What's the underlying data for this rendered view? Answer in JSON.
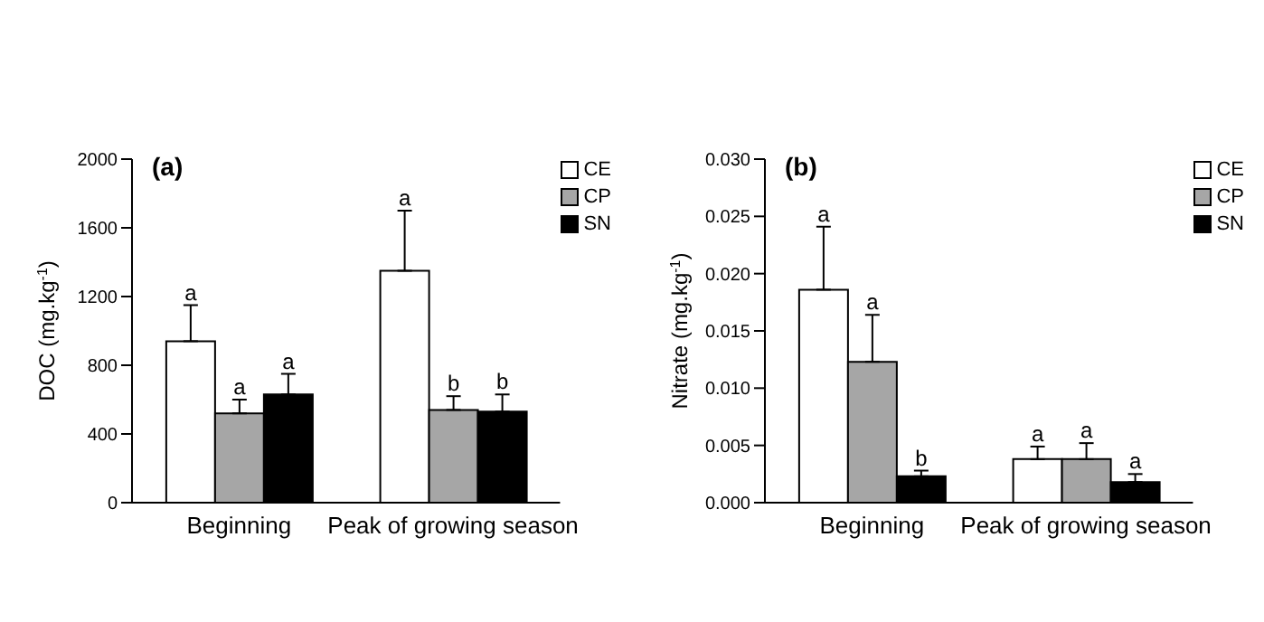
{
  "chart_data": [
    {
      "type": "bar",
      "title": "(a)",
      "ylabel": "DOC (mg.kg$^{-1}$)",
      "categories": [
        "Beginning",
        "Peak of growing season"
      ],
      "ylim": [
        0,
        2000
      ],
      "yticks": [
        0,
        400,
        800,
        1200,
        1600,
        2000
      ],
      "grid": false,
      "legend": "top right",
      "series": [
        {
          "name": "CE",
          "color": "#ffffff",
          "values": [
            940,
            1350
          ],
          "errors": [
            [
              940,
              1150
            ],
            [
              1350,
              1700
            ]
          ],
          "value_labels": [
            "a",
            "a"
          ]
        },
        {
          "name": "CP",
          "color": "#a6a6a6",
          "values": [
            520,
            540
          ],
          "errors": [
            [
              520,
              600
            ],
            [
              540,
              620
            ]
          ],
          "value_labels": [
            "a",
            "b"
          ]
        },
        {
          "name": "SN",
          "color": "#000000",
          "values": [
            630,
            530
          ],
          "errors": [
            [
              630,
              750
            ],
            [
              530,
              630
            ]
          ],
          "value_labels": [
            "a",
            "b"
          ]
        }
      ]
    },
    {
      "type": "bar",
      "title": "(b)",
      "ylabel": "Nitrate (mg.kg$^{-1}$)",
      "categories": [
        "Beginning",
        "Peak of growing season"
      ],
      "ylim": [
        0,
        0.03
      ],
      "yticks": [
        {
          "value": 0,
          "label": "0.000"
        },
        {
          "value": 0.005,
          "label": "0.005"
        },
        {
          "value": 0.01,
          "label": "0.010"
        },
        {
          "value": 0.015,
          "label": "0.015"
        },
        {
          "value": 0.02,
          "label": "0.020"
        },
        {
          "value": 0.025,
          "label": "0.025"
        },
        {
          "value": 0.03,
          "label": "0.030"
        }
      ],
      "grid": false,
      "legend": "top right",
      "series": [
        {
          "name": "CE",
          "color": "#ffffff",
          "values": [
            0.0186,
            0.0038
          ],
          "errors": [
            [
              0.0186,
              0.0241
            ],
            [
              0.0038,
              0.0049
            ]
          ],
          "value_labels": [
            "a",
            "a"
          ]
        },
        {
          "name": "CP",
          "color": "#a6a6a6",
          "values": [
            0.0123,
            0.0038
          ],
          "errors": [
            [
              0.0123,
              0.0164
            ],
            [
              0.0038,
              0.0052
            ]
          ],
          "value_labels": [
            "a",
            "a"
          ]
        },
        {
          "name": "SN",
          "color": "#000000",
          "values": [
            0.0023,
            0.0018
          ],
          "errors": [
            [
              0.0023,
              0.0028
            ],
            [
              0.0018,
              0.0025
            ]
          ],
          "value_labels": [
            "b",
            "a"
          ]
        }
      ]
    }
  ]
}
